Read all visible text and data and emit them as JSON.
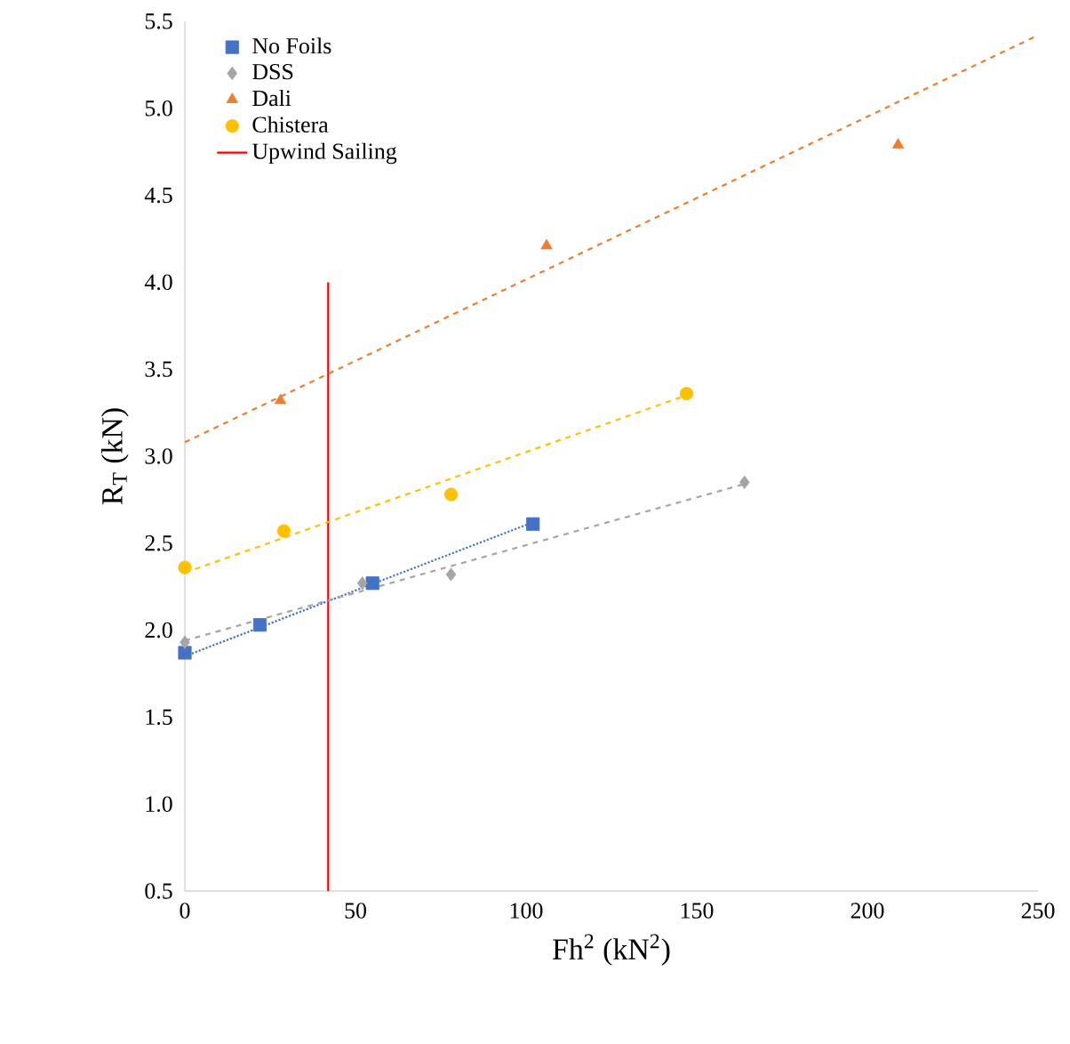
{
  "chart_data": {
    "type": "scatter",
    "xlabel": "Fh$^{2}$ (kN$^{2}$)",
    "ylabel": "R$_{T}$ (kN)",
    "xlim": [
      0,
      250
    ],
    "ylim": [
      0.5,
      5.5
    ],
    "xticks": [
      0,
      50,
      100,
      150,
      200,
      250
    ],
    "yticks": [
      {
        "value": 0.5,
        "label": "0.5"
      },
      {
        "value": 1,
        "label": "1.0"
      },
      {
        "value": 1.5,
        "label": "1.5"
      },
      {
        "value": 2,
        "label": "2.0"
      },
      {
        "value": 2.5,
        "label": "2.5"
      },
      {
        "value": 3,
        "label": "3.0"
      },
      {
        "value": 3.5,
        "label": "3.5"
      },
      {
        "value": 4,
        "label": "4.0"
      },
      {
        "value": 4.5,
        "label": "4.5"
      },
      {
        "value": 5,
        "label": "5.0"
      },
      {
        "value": 5.5,
        "label": "5.5"
      }
    ],
    "grid": false,
    "legend": "top left",
    "series": [
      {
        "name": "No Foils",
        "marker": "square",
        "color": "#4472c4",
        "x": [
          0,
          22,
          55,
          102
        ],
        "values": [
          1.87,
          2.03,
          2.27,
          2.61
        ]
      },
      {
        "name": "DSS",
        "marker": "diamond",
        "color": "#a5a5a5",
        "x": [
          0,
          52,
          78,
          164
        ],
        "values": [
          1.93,
          2.27,
          2.32,
          2.85
        ]
      },
      {
        "name": "Dali",
        "marker": "triangle",
        "color": "#ed7d31",
        "x": [
          28,
          106,
          209
        ],
        "values": [
          3.32,
          4.21,
          4.79
        ]
      },
      {
        "name": "Chistera",
        "marker": "circle",
        "color": "#ffc000",
        "x": [
          0,
          29,
          78,
          147
        ],
        "values": [
          2.36,
          2.57,
          2.78,
          3.36
        ]
      },
      {
        "name": "Upwind Sailing",
        "type": "line",
        "line_style": "solid",
        "color": "#ff0000",
        "x": [
          42,
          42
        ],
        "values": [
          0.5,
          4.0
        ]
      },
      {
        "type": "line",
        "line_style": "dotted",
        "color": "#4472c4",
        "x": [
          0,
          102
        ],
        "values": [
          1.85,
          2.62
        ]
      },
      {
        "type": "line",
        "line_style": "dashed",
        "color": "#a5a5a5",
        "x": [
          0,
          164
        ],
        "values": [
          1.94,
          2.84
        ]
      },
      {
        "type": "line",
        "line_style": "dashed",
        "color": "#ed7d31",
        "x": [
          0,
          250
        ],
        "values": [
          3.08,
          5.42
        ]
      },
      {
        "type": "line",
        "line_style": "dashed",
        "color": "#ffc000",
        "x": [
          0,
          147
        ],
        "values": [
          2.33,
          3.35
        ]
      }
    ]
  }
}
